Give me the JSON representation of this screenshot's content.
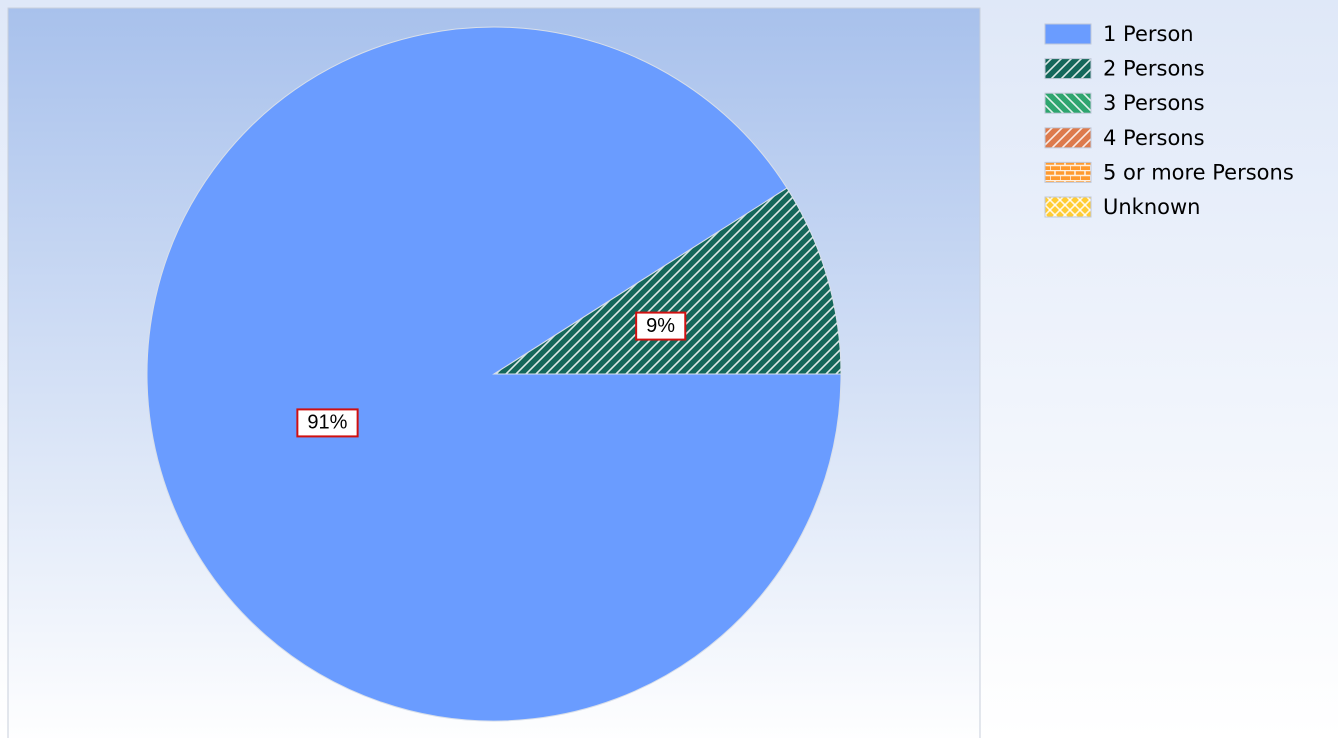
{
  "chart_data": {
    "type": "pie",
    "categories": [
      "1 Person",
      "2 Persons",
      "3 Persons",
      "4 Persons",
      "5 or more Persons",
      "Unknown"
    ],
    "values": [
      91,
      9,
      0,
      0,
      0,
      0
    ],
    "value_labels": [
      "91%",
      "9%",
      null,
      null,
      null,
      null
    ],
    "colors": [
      "#6a9cff",
      "#14675a",
      "#2ea56f",
      "#dd7a4c",
      "#ff9a2e",
      "#ffcc33"
    ],
    "patterns": [
      "solid",
      "forward-diagonal",
      "backward-diagonal",
      "forward-diagonal",
      "brick",
      "diagonal-cross"
    ],
    "legend": "top-right"
  }
}
